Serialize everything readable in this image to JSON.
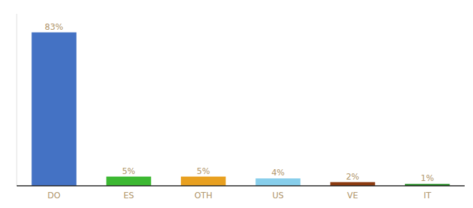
{
  "chart_data": {
    "type": "bar",
    "categories": [
      "DO",
      "ES",
      "OTH",
      "US",
      "VE",
      "IT"
    ],
    "values": [
      83,
      5,
      5,
      4,
      2,
      1
    ],
    "value_labels": [
      "83%",
      "5%",
      "5%",
      "4%",
      "2%",
      "1%"
    ],
    "colors": [
      "#4472c4",
      "#3cb832",
      "#e8a020",
      "#87ceeb",
      "#8b3a10",
      "#228b22"
    ],
    "ylim": [
      0,
      93
    ],
    "data_labels": true,
    "tick_labels": "x"
  }
}
